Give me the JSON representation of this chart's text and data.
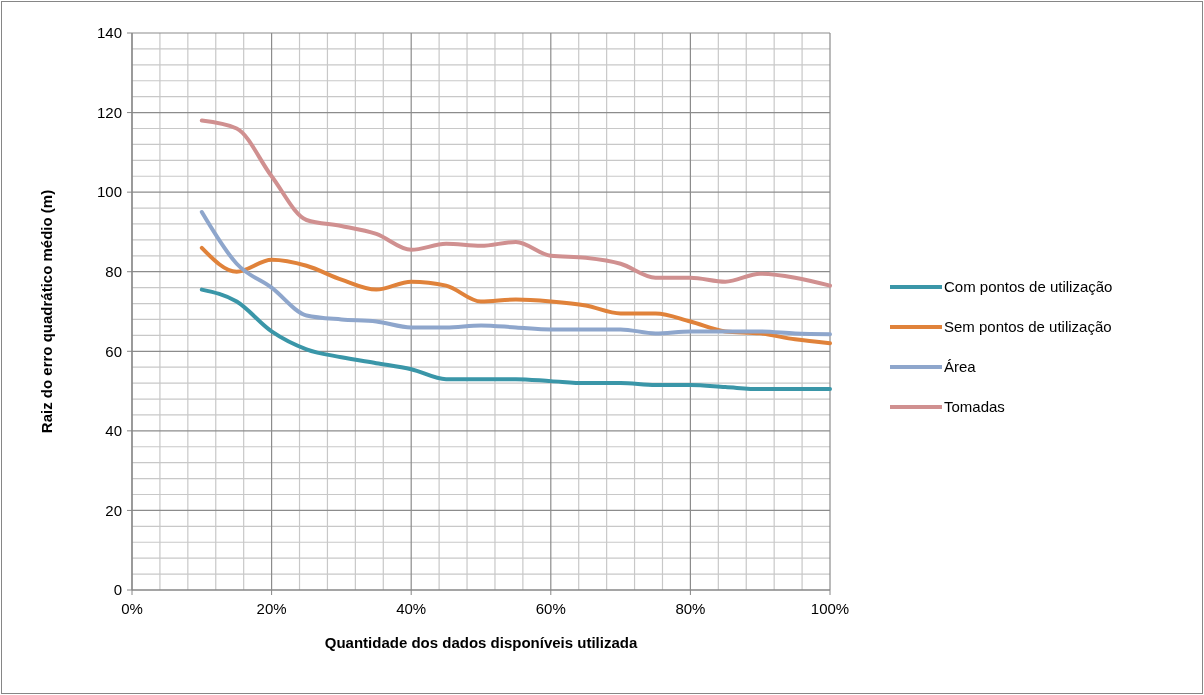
{
  "chart_data": {
    "type": "line",
    "xlabel": "Quantidade dos dados disponíveis utilizada",
    "ylabel": "Raiz do erro quadrático médio (m)",
    "x": [
      10,
      15,
      20,
      25,
      30,
      35,
      40,
      45,
      50,
      55,
      60,
      65,
      70,
      75,
      80,
      85,
      90,
      95,
      100
    ],
    "series": [
      {
        "name": "Com pontos de utilização",
        "color": "#3a96a8",
        "values": [
          75.5,
          72.5,
          65,
          60.5,
          58.5,
          57,
          55.5,
          53,
          53,
          53,
          52.5,
          52,
          52,
          51.5,
          51.5,
          51,
          50.5,
          50.5,
          50.5
        ]
      },
      {
        "name": "Sem pontos de utilização",
        "color": "#e0823a",
        "values": [
          86,
          80,
          83,
          81.5,
          78,
          75.5,
          77.5,
          76.5,
          72.5,
          73,
          72.5,
          71.5,
          69.5,
          69.5,
          67.5,
          65,
          64.5,
          63,
          62
        ]
      },
      {
        "name": "Área",
        "color": "#8ea6cc",
        "values": [
          95,
          82,
          76,
          69,
          68,
          67.5,
          66,
          66,
          66.5,
          66,
          65.5,
          65.5,
          65.5,
          64.5,
          65,
          65,
          65,
          64.5,
          64.3
        ]
      },
      {
        "name": "Tomadas",
        "color": "#d09090",
        "values": [
          118,
          116,
          104,
          93,
          91.5,
          89.5,
          85.5,
          87,
          86.5,
          87.5,
          84,
          83.5,
          82,
          78.5,
          78.5,
          77.5,
          79.5,
          78.5,
          76.5
        ]
      }
    ],
    "xlim": [
      0,
      100
    ],
    "xticks": [
      {
        "value": 0,
        "label": "0%"
      },
      {
        "value": 20,
        "label": "20%"
      },
      {
        "value": 40,
        "label": "40%"
      },
      {
        "value": 60,
        "label": "60%"
      },
      {
        "value": 80,
        "label": "80%"
      },
      {
        "value": 100,
        "label": "100%"
      }
    ],
    "ylim": [
      0,
      140
    ],
    "yticks": [
      0,
      20,
      40,
      60,
      80,
      100,
      120,
      140
    ],
    "grid": true,
    "legend": "right",
    "marker": "none",
    "line_style": "solid"
  }
}
